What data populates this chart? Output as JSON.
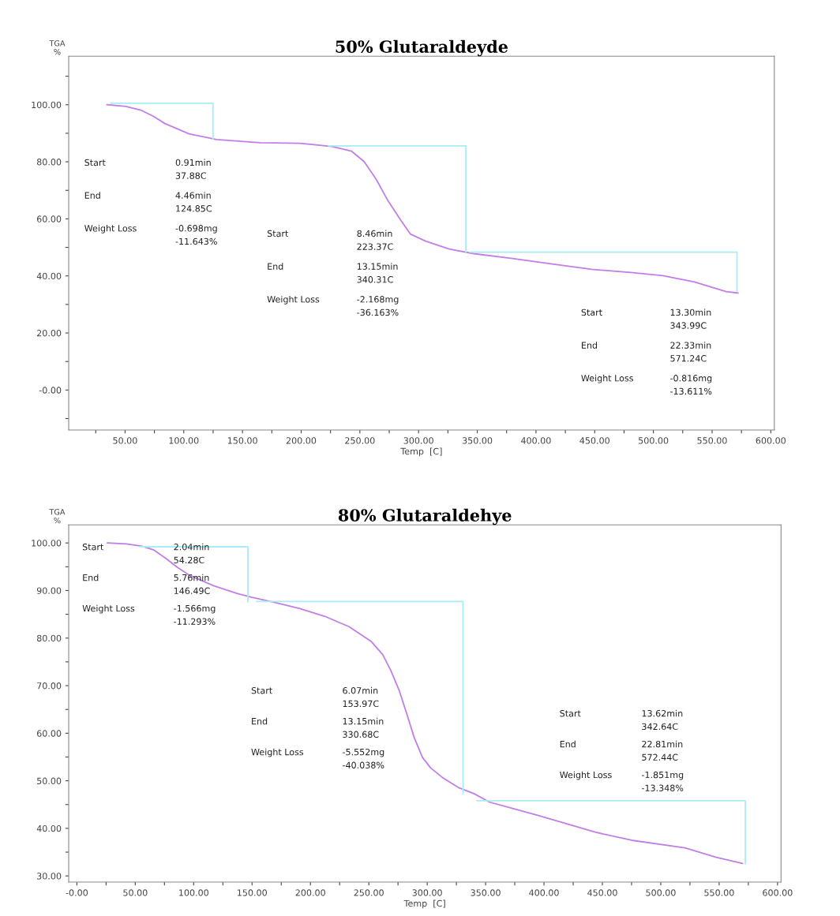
{
  "chart_data": [
    {
      "type": "line",
      "title": "50% Glutaraldeyde",
      "xlabel": "Temp  [C]",
      "ylabel": "TGA\n%",
      "xlim": [
        2,
        603
      ],
      "ylim": [
        -14,
        117
      ],
      "xticks": [
        {
          "value": 25,
          "label": null
        },
        {
          "value": 50,
          "label": "50.00"
        },
        {
          "value": 75,
          "label": null
        },
        {
          "value": 100,
          "label": "100.00"
        },
        {
          "value": 125,
          "label": null
        },
        {
          "value": 150,
          "label": "150.00"
        },
        {
          "value": 175,
          "label": null
        },
        {
          "value": 200,
          "label": "200.00"
        },
        {
          "value": 225,
          "label": null
        },
        {
          "value": 250,
          "label": "250.00"
        },
        {
          "value": 275,
          "label": null
        },
        {
          "value": 300,
          "label": "300.00"
        },
        {
          "value": 325,
          "label": null
        },
        {
          "value": 350,
          "label": "350.00"
        },
        {
          "value": 375,
          "label": null
        },
        {
          "value": 400,
          "label": "400.00"
        },
        {
          "value": 425,
          "label": null
        },
        {
          "value": 450,
          "label": "450.00"
        },
        {
          "value": 475,
          "label": null
        },
        {
          "value": 500,
          "label": "500.00"
        },
        {
          "value": 525,
          "label": null
        },
        {
          "value": 550,
          "label": "550.00"
        },
        {
          "value": 575,
          "label": null
        },
        {
          "value": 600,
          "label": "600.00"
        }
      ],
      "yticks": [
        {
          "value": -10,
          "label": null
        },
        {
          "value": 0,
          "label": "-0.00"
        },
        {
          "value": 10,
          "label": null
        },
        {
          "value": 20,
          "label": "20.00"
        },
        {
          "value": 30,
          "label": null
        },
        {
          "value": 40,
          "label": "40.00"
        },
        {
          "value": 50,
          "label": null
        },
        {
          "value": 60,
          "label": "60.00"
        },
        {
          "value": 70,
          "label": null
        },
        {
          "value": 80,
          "label": "80.00"
        },
        {
          "value": 90,
          "label": null
        },
        {
          "value": 100,
          "label": "100.00"
        },
        {
          "value": 110,
          "label": null
        }
      ],
      "grid": false,
      "marker": "none",
      "line_style": "solid",
      "series": [
        {
          "color": "#c27ee6",
          "x": [
            34.6,
            50.7,
            64,
            74,
            84,
            104.5,
            128,
            165,
            199,
            226,
            243,
            253.6,
            264,
            274,
            285,
            293,
            306,
            326,
            347,
            380,
            414,
            447.5,
            481,
            508,
            535,
            562,
            572
          ],
          "values": [
            100,
            99.4,
            98,
            96,
            93.4,
            89.8,
            87.8,
            86.7,
            86.5,
            85.4,
            83.7,
            80.1,
            73.8,
            66.3,
            59.4,
            54.7,
            52.2,
            49.4,
            47.8,
            46.1,
            44.2,
            42.3,
            41.2,
            40.1,
            37.9,
            34.5,
            34
          ]
        },
        {
          "color": "#a8ecf5",
          "x": [
            37.88,
            124.85,
            124.85
          ],
          "values": [
            100.5,
            100.5,
            87.9
          ]
        },
        {
          "color": "#a8ecf5",
          "x": [
            223.37,
            340.31,
            340.31
          ],
          "values": [
            85.6,
            85.6,
            48.3
          ]
        },
        {
          "color": "#a8ecf5",
          "x": [
            343.99,
            571.24,
            571.24
          ],
          "values": [
            48.3,
            48.3,
            34.6
          ]
        }
      ],
      "annotations": [
        "Start",
        "0.91min\n37.88C",
        "End",
        "4.46min\n124.85C",
        "Weight Loss",
        "-0.698mg\n-11.643%",
        "Start",
        "8.46min\n223.37C",
        "End",
        "13.15min\n340.31C",
        "Weight Loss",
        "-2.168mg\n-36.163%",
        "Start",
        "13.30min\n343.99C",
        "End",
        "22.33min\n571.24C",
        "Weight Loss",
        "-0.816mg\n-13.611%"
      ]
    },
    {
      "type": "line",
      "title": "80% Glutaraldehye",
      "xlabel": "Temp  [C]",
      "ylabel": "TGA\n%",
      "xlim": [
        -7,
        603
      ],
      "ylim": [
        28.7,
        103.8
      ],
      "xticks": [
        {
          "value": 0,
          "label": "-0.00"
        },
        {
          "value": 25,
          "label": null
        },
        {
          "value": 50,
          "label": "50.00"
        },
        {
          "value": 75,
          "label": null
        },
        {
          "value": 100,
          "label": "100.00"
        },
        {
          "value": 125,
          "label": null
        },
        {
          "value": 150,
          "label": "150.00"
        },
        {
          "value": 175,
          "label": null
        },
        {
          "value": 200,
          "label": "200.00"
        },
        {
          "value": 225,
          "label": null
        },
        {
          "value": 250,
          "label": "250.00"
        },
        {
          "value": 275,
          "label": null
        },
        {
          "value": 300,
          "label": "300.00"
        },
        {
          "value": 325,
          "label": null
        },
        {
          "value": 350,
          "label": "350.00"
        },
        {
          "value": 375,
          "label": null
        },
        {
          "value": 400,
          "label": "400.00"
        },
        {
          "value": 425,
          "label": null
        },
        {
          "value": 450,
          "label": "450.00"
        },
        {
          "value": 475,
          "label": null
        },
        {
          "value": 500,
          "label": "500.00"
        },
        {
          "value": 525,
          "label": null
        },
        {
          "value": 550,
          "label": "550.00"
        },
        {
          "value": 575,
          "label": null
        },
        {
          "value": 600,
          "label": "600.00"
        }
      ],
      "yticks": [
        {
          "value": 30,
          "label": "30.00"
        },
        {
          "value": 35,
          "label": null
        },
        {
          "value": 40,
          "label": "40.00"
        },
        {
          "value": 45,
          "label": null
        },
        {
          "value": 50,
          "label": "50.00"
        },
        {
          "value": 55,
          "label": null
        },
        {
          "value": 60,
          "label": "60.00"
        },
        {
          "value": 65,
          "label": null
        },
        {
          "value": 70,
          "label": "70.00"
        },
        {
          "value": 75,
          "label": null
        },
        {
          "value": 80,
          "label": "80.00"
        },
        {
          "value": 85,
          "label": null
        },
        {
          "value": 90,
          "label": "90.00"
        },
        {
          "value": 95,
          "label": null
        },
        {
          "value": 100,
          "label": "100.00"
        }
      ],
      "grid": false,
      "marker": "none",
      "line_style": "solid",
      "series": [
        {
          "color": "#c27ee6",
          "x": [
            26.2,
            42.4,
            56,
            66,
            76,
            86,
            96.5,
            117,
            137,
            149.3,
            171,
            191,
            212,
            233,
            252,
            262,
            269,
            276,
            282.6,
            289,
            296,
            303,
            313,
            326.6,
            340,
            353.5,
            394,
            443.8,
            475,
            520.7,
            547.6,
            570
          ],
          "values": [
            100,
            99.8,
            99.3,
            98.5,
            96.8,
            94.9,
            93.2,
            91,
            89.4,
            88.6,
            87.4,
            86.2,
            84.6,
            82.4,
            79.3,
            76.5,
            73.1,
            69,
            64,
            59,
            54.9,
            52.7,
            50.7,
            48.6,
            47.3,
            45.5,
            42.8,
            39.2,
            37.5,
            35.9,
            33.9,
            32.6
          ]
        },
        {
          "color": "#a8ecf5",
          "x": [
            54.28,
            146.49,
            146.49
          ],
          "values": [
            99.2,
            99.2,
            87.7
          ]
        },
        {
          "color": "#a8ecf5",
          "x": [
            153.97,
            330.68,
            330.68
          ],
          "values": [
            87.7,
            87.7,
            47.4
          ]
        },
        {
          "color": "#a8ecf5",
          "x": [
            342.64,
            572.44,
            572.44
          ],
          "values": [
            45.8,
            45.8,
            32.6
          ]
        }
      ],
      "annotations": [
        "Start",
        "2.04min\n54.28C",
        "End",
        "5.76min\n146.49C",
        "Weight Loss",
        "-1.566mg\n-11.293%",
        "Start",
        "6.07min\n153.97C",
        "End",
        "13.15min\n330.68C",
        "Weight Loss",
        "-5.552mg\n-40.038%",
        "Start",
        "13.62min\n342.64C",
        "End",
        "22.81min\n572.44C",
        "Weight Loss",
        "-1.851mg\n-13.348%"
      ]
    }
  ]
}
